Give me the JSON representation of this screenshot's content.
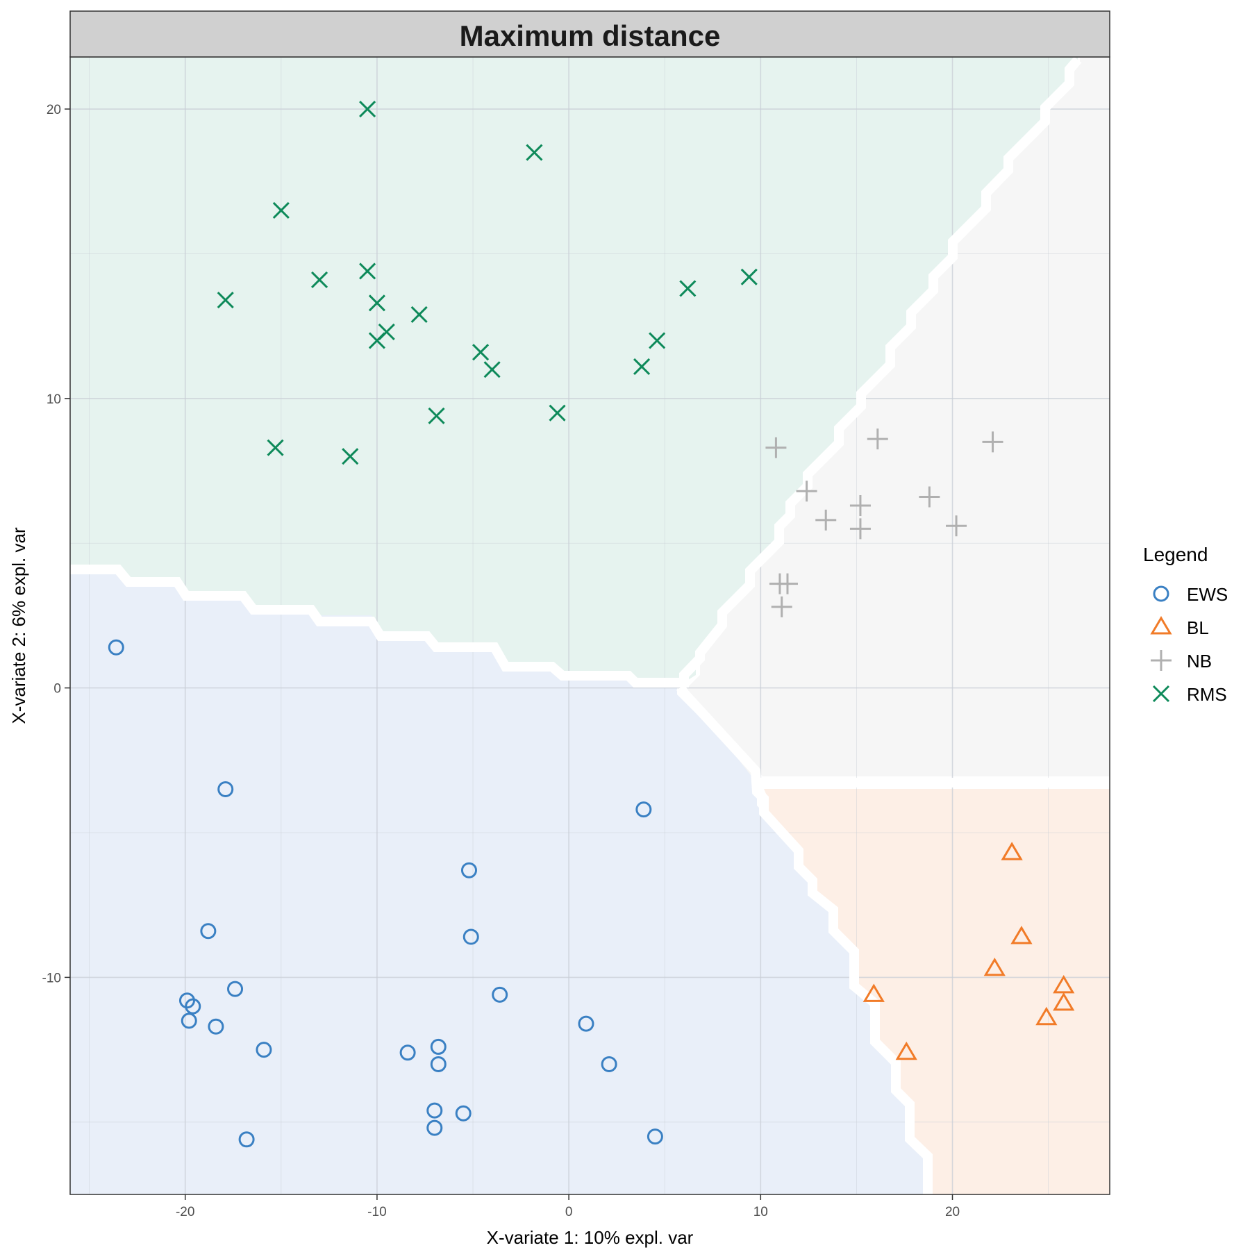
{
  "chart_data": {
    "type": "scatter",
    "title": "Maximum distance",
    "xlabel": "X-variate 1: 10% expl. var",
    "ylabel": "X-variate 2: 6% expl. var",
    "xlim": [
      -26,
      28.2
    ],
    "ylim": [
      -17.5,
      21.8
    ],
    "xticks": [
      -20,
      -10,
      0,
      10,
      20
    ],
    "yticks": [
      -10,
      0,
      10,
      20
    ],
    "x_tick_labels": [
      "-20",
      "-10",
      "0",
      "10",
      "20"
    ],
    "y_tick_labels": [
      "-10",
      "0",
      "10",
      "20"
    ],
    "grid": true,
    "legend": {
      "title": "Legend",
      "position": "right"
    },
    "series": [
      {
        "name": "EWS",
        "marker": "circle",
        "color": "#3a80c3",
        "points": [
          [
            -23.6,
            1.4
          ],
          [
            -17.9,
            -3.5
          ],
          [
            -18.8,
            -8.4
          ],
          [
            -17.4,
            -10.4
          ],
          [
            -19.9,
            -10.8
          ],
          [
            -19.6,
            -11.0
          ],
          [
            -19.8,
            -11.5
          ],
          [
            -18.4,
            -11.7
          ],
          [
            -15.9,
            -12.5
          ],
          [
            -16.8,
            -15.6
          ],
          [
            -8.4,
            -12.6
          ],
          [
            -6.8,
            -12.4
          ],
          [
            -6.8,
            -13.0
          ],
          [
            -7.0,
            -14.6
          ],
          [
            -5.5,
            -14.7
          ],
          [
            -7.0,
            -15.2
          ],
          [
            -5.2,
            -6.3
          ],
          [
            -5.1,
            -8.6
          ],
          [
            -3.6,
            -10.6
          ],
          [
            3.9,
            -4.2
          ],
          [
            0.9,
            -11.6
          ],
          [
            2.1,
            -13.0
          ],
          [
            4.5,
            -15.5
          ]
        ]
      },
      {
        "name": "BL",
        "marker": "triangle",
        "color": "#f17b28",
        "points": [
          [
            23.1,
            -5.7
          ],
          [
            23.6,
            -8.6
          ],
          [
            22.2,
            -9.7
          ],
          [
            25.8,
            -10.3
          ],
          [
            25.8,
            -10.9
          ],
          [
            24.9,
            -11.4
          ],
          [
            15.9,
            -10.6
          ],
          [
            17.6,
            -12.6
          ]
        ]
      },
      {
        "name": "NB",
        "marker": "plus",
        "color": "#b0b0b0",
        "points": [
          [
            10.8,
            8.3
          ],
          [
            16.1,
            8.6
          ],
          [
            22.1,
            8.5
          ],
          [
            12.4,
            6.8
          ],
          [
            13.4,
            5.8
          ],
          [
            15.2,
            6.3
          ],
          [
            15.2,
            5.5
          ],
          [
            18.8,
            6.6
          ],
          [
            20.2,
            5.6
          ],
          [
            11.0,
            3.6
          ],
          [
            11.4,
            3.6
          ],
          [
            11.1,
            2.8
          ]
        ]
      },
      {
        "name": "RMS",
        "marker": "x",
        "color": "#0e8a5a",
        "points": [
          [
            -10.5,
            20.0
          ],
          [
            -1.8,
            18.5
          ],
          [
            -15.0,
            16.5
          ],
          [
            -17.9,
            13.4
          ],
          [
            -13.0,
            14.1
          ],
          [
            -10.5,
            14.4
          ],
          [
            -10.0,
            13.3
          ],
          [
            -7.8,
            12.9
          ],
          [
            -9.5,
            12.3
          ],
          [
            -10.0,
            12.0
          ],
          [
            -4.6,
            11.6
          ],
          [
            -4.0,
            11.0
          ],
          [
            6.2,
            13.8
          ],
          [
            9.4,
            14.2
          ],
          [
            4.6,
            12.0
          ],
          [
            3.8,
            11.1
          ],
          [
            -6.9,
            9.4
          ],
          [
            -0.6,
            9.5
          ],
          [
            -15.3,
            8.3
          ],
          [
            -11.4,
            8.0
          ]
        ]
      }
    ],
    "regions": [
      {
        "class": "RMS",
        "fill": "#e6f3ef"
      },
      {
        "class": "EWS",
        "fill": "#e9eff9"
      },
      {
        "class": "NB",
        "fill": "#f6f6f6"
      },
      {
        "class": "BL",
        "fill": "#fdefe6"
      }
    ]
  }
}
